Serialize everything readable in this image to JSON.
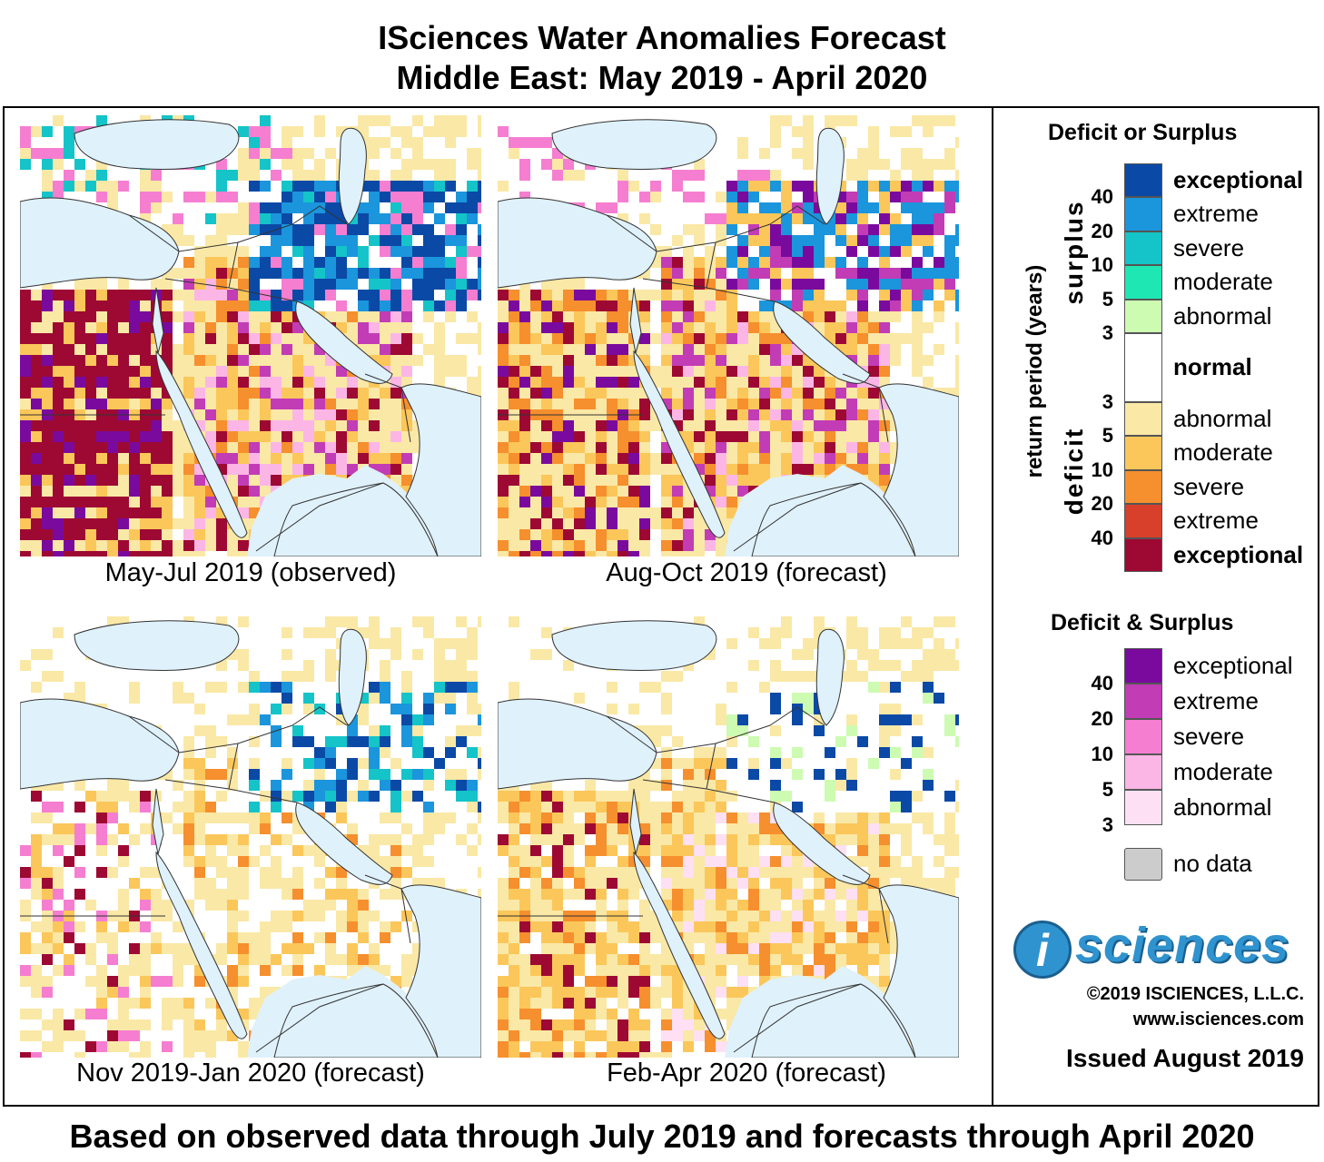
{
  "header": {
    "title_line1": "ISciences Water Anomalies Forecast",
    "title_line2": "Middle East: May 2019 - April 2020"
  },
  "panels": [
    {
      "caption": "May-Jul 2019 (observed)",
      "scheme": "observed"
    },
    {
      "caption": "Aug-Oct 2019 (forecast)",
      "scheme": "aug"
    },
    {
      "caption": "Nov 2019-Jan 2020 (forecast)",
      "scheme": "nov"
    },
    {
      "caption": "Feb-Apr 2020 (forecast)",
      "scheme": "feb"
    }
  ],
  "legend": {
    "heading_deficit_or_surplus": "Deficit or Surplus",
    "axis_label": "return period (years)",
    "surplus_label": "surplus",
    "deficit_label": "deficit",
    "surplus": [
      {
        "label": "exceptional",
        "color": "#0b49a6",
        "bold": true
      },
      {
        "label": "extreme",
        "color": "#1b95dc",
        "bold": false
      },
      {
        "label": "severe",
        "color": "#14c4c8",
        "bold": false
      },
      {
        "label": "moderate",
        "color": "#1fe7b3",
        "bold": false
      },
      {
        "label": "abnormal",
        "color": "#cdfbb2",
        "bold": false
      }
    ],
    "normal": {
      "label": "normal",
      "color": "#ffffff"
    },
    "deficit": [
      {
        "label": "abnormal",
        "color": "#fae8a6",
        "bold": false
      },
      {
        "label": "moderate",
        "color": "#fbc75a",
        "bold": false
      },
      {
        "label": "severe",
        "color": "#f68f2d",
        "bold": false
      },
      {
        "label": "extreme",
        "color": "#d8402b",
        "bold": false
      },
      {
        "label": "exceptional",
        "color": "#9d0933",
        "bold": true
      }
    ],
    "return_periods_surplus": [
      "40",
      "20",
      "10",
      "5",
      "3"
    ],
    "return_periods_deficit": [
      "3",
      "5",
      "10",
      "20",
      "40"
    ],
    "heading_deficit_and_surplus": "Deficit & Surplus",
    "both": [
      {
        "label": "exceptional",
        "color": "#7a0a9e"
      },
      {
        "label": "extreme",
        "color": "#c23cb5"
      },
      {
        "label": "severe",
        "color": "#f57ed1"
      },
      {
        "label": "moderate",
        "color": "#fbb6e6"
      },
      {
        "label": "abnormal",
        "color": "#fde0f3"
      }
    ],
    "return_periods_both": [
      "40",
      "20",
      "10",
      "5",
      "3"
    ],
    "no_data": {
      "label": "no data",
      "color": "#cccccc"
    }
  },
  "branding": {
    "logo_letter": "i",
    "logo_text": "sciences",
    "copyright": "©2019 ISCIENCES, L.L.C.",
    "website": "www.isciences.com",
    "issued": "Issued August 2019"
  },
  "footer": {
    "text": "Based on observed data through July 2019 and forecasts through April 2020"
  }
}
